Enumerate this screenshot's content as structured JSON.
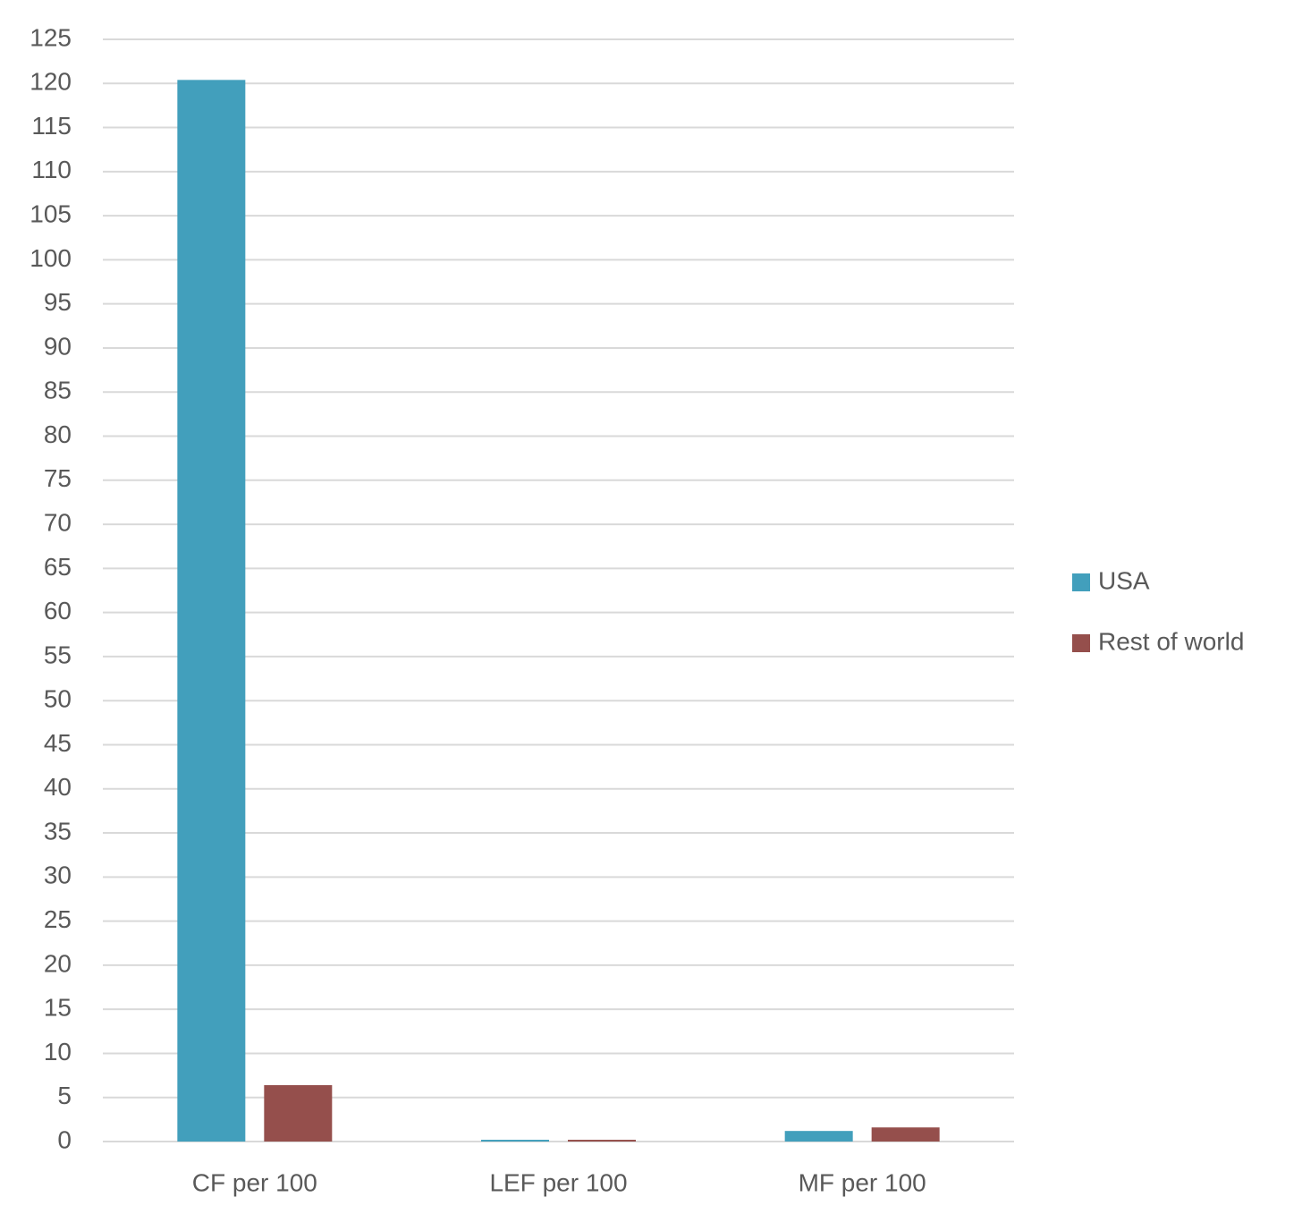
{
  "chart_data": {
    "type": "bar",
    "categories": [
      "CF per 100",
      "LEF per 100",
      "MF per 100"
    ],
    "series": [
      {
        "name": "USA",
        "color": "#429fbc",
        "values": [
          120.4,
          0.2,
          1.2
        ]
      },
      {
        "name": "Rest of world",
        "color": "#954f4c",
        "values": [
          6.4,
          0.2,
          1.6
        ]
      }
    ],
    "ylim": [
      0,
      125
    ],
    "yticks": [
      0,
      5,
      10,
      15,
      20,
      25,
      30,
      35,
      40,
      45,
      50,
      55,
      60,
      65,
      70,
      75,
      80,
      85,
      90,
      95,
      100,
      105,
      110,
      115,
      120,
      125
    ],
    "grid": true,
    "legend": "right"
  }
}
